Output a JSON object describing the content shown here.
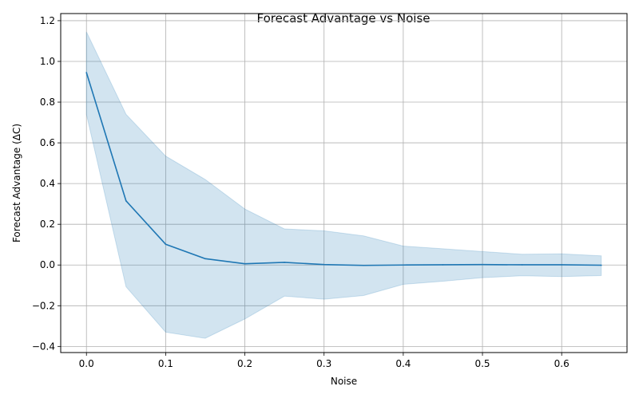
{
  "chart_data": {
    "type": "line",
    "title": "Forecast Advantage vs Noise",
    "xlabel": "Noise",
    "ylabel": "Forecast Advantage (ΔC)",
    "xlim": [
      -0.0325,
      0.6825
    ],
    "ylim": [
      -0.43,
      1.235
    ],
    "x_ticks": [
      0.0,
      0.1,
      0.2,
      0.3,
      0.4,
      0.5,
      0.6
    ],
    "x_tick_labels": [
      "0.0",
      "0.1",
      "0.2",
      "0.3",
      "0.4",
      "0.5",
      "0.6"
    ],
    "y_ticks": [
      -0.4,
      -0.2,
      0.0,
      0.2,
      0.4,
      0.6,
      0.8,
      1.0,
      1.2
    ],
    "y_tick_labels": [
      "−0.4",
      "−0.2",
      "0.0",
      "0.2",
      "0.4",
      "0.6",
      "0.8",
      "1.0",
      "1.2"
    ],
    "grid": true,
    "series": [
      {
        "x": [
          0.0,
          0.05,
          0.1,
          0.15,
          0.2,
          0.25,
          0.3,
          0.35,
          0.4,
          0.45,
          0.5,
          0.55,
          0.6,
          0.65
        ],
        "values": [
          0.945,
          0.315,
          0.102,
          0.031,
          0.006,
          0.013,
          0.002,
          -0.002,
          0.0,
          0.001,
          0.002,
          0.001,
          0.001,
          -0.001
        ],
        "upper": [
          1.145,
          0.74,
          0.535,
          0.42,
          0.275,
          0.177,
          0.168,
          0.143,
          0.093,
          0.08,
          0.066,
          0.053,
          0.055,
          0.045
        ],
        "lower": [
          0.74,
          -0.107,
          -0.33,
          -0.36,
          -0.265,
          -0.153,
          -0.168,
          -0.15,
          -0.095,
          -0.08,
          -0.062,
          -0.053,
          -0.057,
          -0.052
        ],
        "color": "#1f77b4",
        "band_color": "#1f77b4",
        "band_opacity": 0.2
      }
    ]
  },
  "colors": {
    "grid": "#b0b0b0",
    "axis": "#000000",
    "background": "#ffffff"
  }
}
